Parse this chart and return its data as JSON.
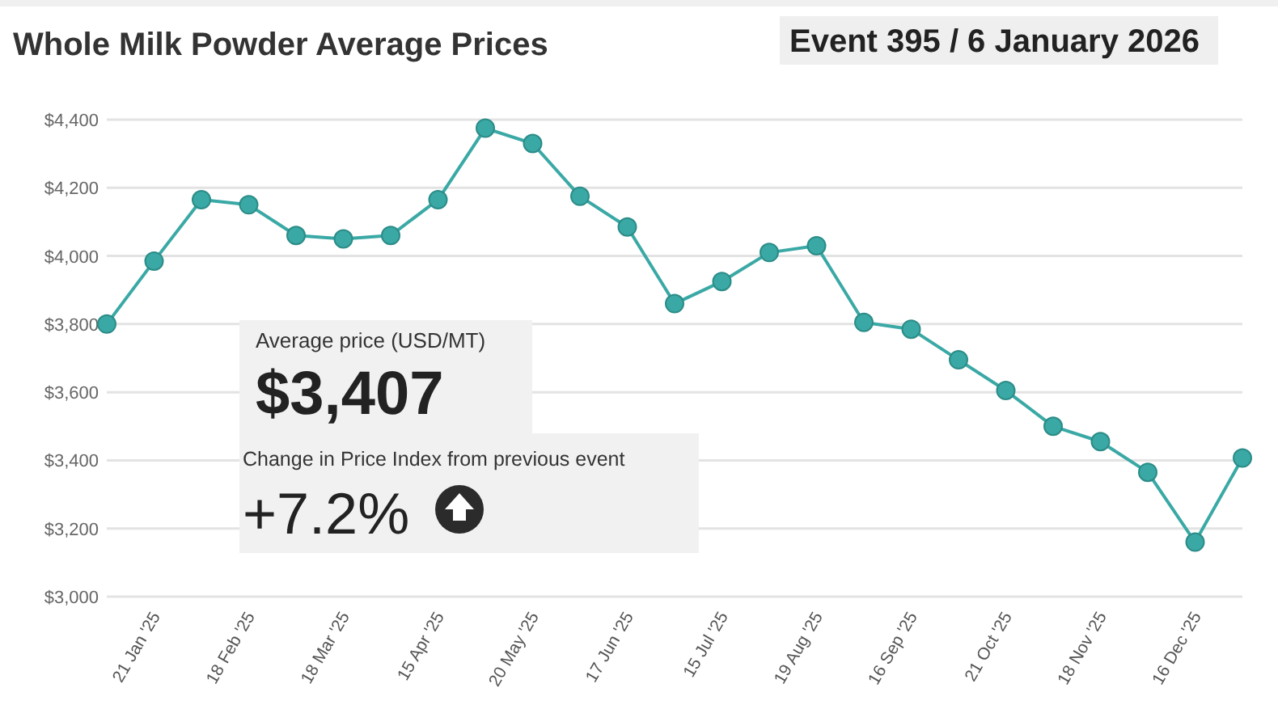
{
  "chart_data": {
    "type": "line",
    "title": "Whole Milk Powder Average Prices",
    "subtitle": "Event 395 / 6 January 2026",
    "categories": [
      null,
      "21 Jan '25",
      null,
      "18 Feb '25",
      null,
      "18 Mar '25",
      null,
      "15 Apr '25",
      null,
      "20 May '25",
      null,
      "17 Jun '25",
      null,
      "15 Jul '25",
      null,
      "19 Aug '25",
      null,
      "16 Sep '25",
      null,
      "21 Oct '25",
      null,
      "18 Nov '25",
      null,
      "16 Dec '25",
      null
    ],
    "series": [
      {
        "color": "#3aa9a5",
        "values": [
          3800,
          3985,
          4165,
          4150,
          4060,
          4050,
          4060,
          4165,
          4375,
          4330,
          4175,
          4085,
          3860,
          3925,
          4010,
          4030,
          3805,
          3785,
          3695,
          3605,
          3500,
          3455,
          3365,
          3160,
          3407
        ]
      }
    ],
    "ylim": [
      3000,
      4400
    ],
    "yticks": [
      {
        "value": 3000,
        "label": "$3,000"
      },
      {
        "value": 3200,
        "label": "$3,200"
      },
      {
        "value": 3400,
        "label": "$3,400"
      },
      {
        "value": 3600,
        "label": "$3,600"
      },
      {
        "value": 3800,
        "label": "$3,800"
      },
      {
        "value": 4000,
        "label": "$4,000"
      },
      {
        "value": 4200,
        "label": "$4,200"
      },
      {
        "value": 4400,
        "label": "$4,400"
      }
    ],
    "grid": "y",
    "marker": "circle",
    "line_style": "solid",
    "annotations": [
      "Average price (USD/MT)",
      "$3,407",
      "Change in Price Index from previous event",
      "+7.2%"
    ]
  }
}
